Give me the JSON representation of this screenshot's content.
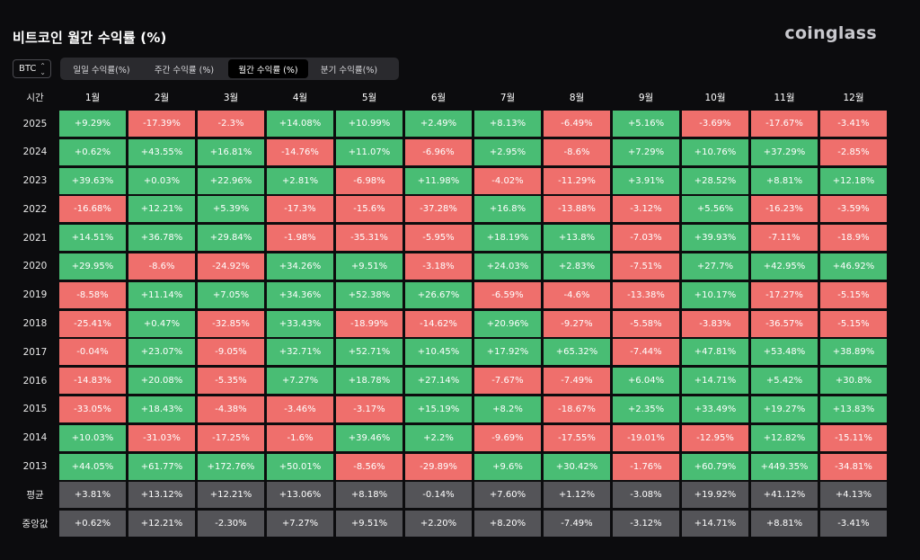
{
  "title": "비트코인 월간 수익률 (%)",
  "logo": "coinglass",
  "asset_select": {
    "value": "BTC"
  },
  "tabs": [
    {
      "label": "일일 수익률(%)",
      "active": false
    },
    {
      "label": "주간 수익률 (%)",
      "active": false
    },
    {
      "label": "월간 수익률 (%)",
      "active": true
    },
    {
      "label": "분기 수익률(%)",
      "active": false
    }
  ],
  "colors": {
    "positive": "#49bd74",
    "negative": "#ef6f6c",
    "summary": "#545458"
  },
  "table": {
    "corner_label": "시간",
    "months": [
      "1월",
      "2월",
      "3월",
      "4월",
      "5월",
      "6월",
      "7월",
      "8월",
      "9월",
      "10월",
      "11월",
      "12월"
    ],
    "rows": [
      {
        "year": "2025",
        "values": [
          "+9.29%",
          "-17.39%",
          "-2.3%",
          "+14.08%",
          "+10.99%",
          "+2.49%",
          "+8.13%",
          "-6.49%",
          "+5.16%",
          "-3.69%",
          "-17.67%",
          "-3.41%"
        ]
      },
      {
        "year": "2024",
        "values": [
          "+0.62%",
          "+43.55%",
          "+16.81%",
          "-14.76%",
          "+11.07%",
          "-6.96%",
          "+2.95%",
          "-8.6%",
          "+7.29%",
          "+10.76%",
          "+37.29%",
          "-2.85%"
        ]
      },
      {
        "year": "2023",
        "values": [
          "+39.63%",
          "+0.03%",
          "+22.96%",
          "+2.81%",
          "-6.98%",
          "+11.98%",
          "-4.02%",
          "-11.29%",
          "+3.91%",
          "+28.52%",
          "+8.81%",
          "+12.18%"
        ]
      },
      {
        "year": "2022",
        "values": [
          "-16.68%",
          "+12.21%",
          "+5.39%",
          "-17.3%",
          "-15.6%",
          "-37.28%",
          "+16.8%",
          "-13.88%",
          "-3.12%",
          "+5.56%",
          "-16.23%",
          "-3.59%"
        ]
      },
      {
        "year": "2021",
        "values": [
          "+14.51%",
          "+36.78%",
          "+29.84%",
          "-1.98%",
          "-35.31%",
          "-5.95%",
          "+18.19%",
          "+13.8%",
          "-7.03%",
          "+39.93%",
          "-7.11%",
          "-18.9%"
        ]
      },
      {
        "year": "2020",
        "values": [
          "+29.95%",
          "-8.6%",
          "-24.92%",
          "+34.26%",
          "+9.51%",
          "-3.18%",
          "+24.03%",
          "+2.83%",
          "-7.51%",
          "+27.7%",
          "+42.95%",
          "+46.92%"
        ]
      },
      {
        "year": "2019",
        "values": [
          "-8.58%",
          "+11.14%",
          "+7.05%",
          "+34.36%",
          "+52.38%",
          "+26.67%",
          "-6.59%",
          "-4.6%",
          "-13.38%",
          "+10.17%",
          "-17.27%",
          "-5.15%"
        ]
      },
      {
        "year": "2018",
        "values": [
          "-25.41%",
          "+0.47%",
          "-32.85%",
          "+33.43%",
          "-18.99%",
          "-14.62%",
          "+20.96%",
          "-9.27%",
          "-5.58%",
          "-3.83%",
          "-36.57%",
          "-5.15%"
        ]
      },
      {
        "year": "2017",
        "values": [
          "-0.04%",
          "+23.07%",
          "-9.05%",
          "+32.71%",
          "+52.71%",
          "+10.45%",
          "+17.92%",
          "+65.32%",
          "-7.44%",
          "+47.81%",
          "+53.48%",
          "+38.89%"
        ]
      },
      {
        "year": "2016",
        "values": [
          "-14.83%",
          "+20.08%",
          "-5.35%",
          "+7.27%",
          "+18.78%",
          "+27.14%",
          "-7.67%",
          "-7.49%",
          "+6.04%",
          "+14.71%",
          "+5.42%",
          "+30.8%"
        ]
      },
      {
        "year": "2015",
        "values": [
          "-33.05%",
          "+18.43%",
          "-4.38%",
          "-3.46%",
          "-3.17%",
          "+15.19%",
          "+8.2%",
          "-18.67%",
          "+2.35%",
          "+33.49%",
          "+19.27%",
          "+13.83%"
        ]
      },
      {
        "year": "2014",
        "values": [
          "+10.03%",
          "-31.03%",
          "-17.25%",
          "-1.6%",
          "+39.46%",
          "+2.2%",
          "-9.69%",
          "-17.55%",
          "-19.01%",
          "-12.95%",
          "+12.82%",
          "-15.11%"
        ]
      },
      {
        "year": "2013",
        "values": [
          "+44.05%",
          "+61.77%",
          "+172.76%",
          "+50.01%",
          "-8.56%",
          "-29.89%",
          "+9.6%",
          "+30.42%",
          "-1.76%",
          "+60.79%",
          "+449.35%",
          "-34.81%"
        ]
      }
    ],
    "summary_rows": [
      {
        "label": "평균",
        "values": [
          "+3.81%",
          "+13.12%",
          "+12.21%",
          "+13.06%",
          "+8.18%",
          "-0.14%",
          "+7.60%",
          "+1.12%",
          "-3.08%",
          "+19.92%",
          "+41.12%",
          "+4.13%"
        ]
      },
      {
        "label": "중앙값",
        "values": [
          "+0.62%",
          "+12.21%",
          "-2.30%",
          "+7.27%",
          "+9.51%",
          "+2.20%",
          "+8.20%",
          "-7.49%",
          "-3.12%",
          "+14.71%",
          "+8.81%",
          "-3.41%"
        ]
      }
    ]
  }
}
